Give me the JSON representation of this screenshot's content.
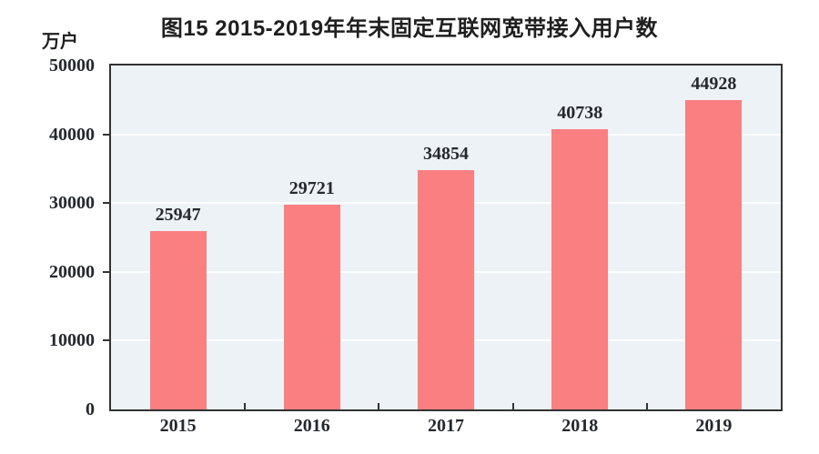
{
  "figure": {
    "title": "图15 2015-2019年年末固定互联网宽带接入用户数",
    "unit_label": "万户"
  },
  "chart_data": {
    "type": "bar",
    "title": "图15 2015-2019年年末固定互联网宽带接入用户数",
    "categories": [
      "2015",
      "2016",
      "2017",
      "2018",
      "2019"
    ],
    "values": [
      25947,
      29721,
      34854,
      40738,
      44928
    ],
    "xlabel": "",
    "ylabel": "万户",
    "ylim": [
      0,
      50000
    ],
    "yticks": [
      0,
      10000,
      20000,
      30000,
      40000,
      50000
    ],
    "grid": "horizontal",
    "legend_position": "none",
    "data_labels": "above-bars",
    "colors": {
      "bar": "#fa7f81",
      "plot_background": "#ecf2f6",
      "gridline": "#ffffff",
      "axis": "#333333",
      "text": "#25282e"
    }
  }
}
